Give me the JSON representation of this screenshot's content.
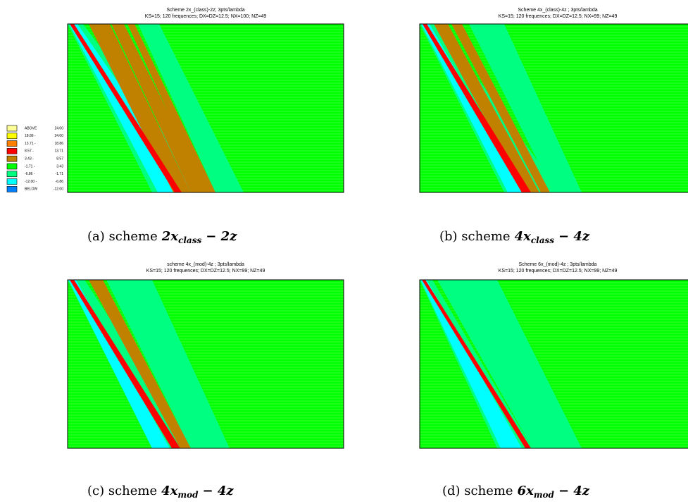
{
  "panels": [
    {
      "title": "Scheme 2x_(class)-2z; 3pts/lambda",
      "subtitle": "KS=15; 120 frequences; DX=DZ=12.5; NX=100; NZ=49",
      "caption": {
        "label": "(a) scheme",
        "coef": "2x",
        "sub": "class",
        "tail": "− 2z"
      }
    },
    {
      "title": "Scheme 4x_(class)-4z ; 3pts/lambda",
      "subtitle": "KS=15; 120 frequences; DX=DZ=12.5; NX=99; NZ=49",
      "caption": {
        "label": "(b) scheme",
        "coef": "4x",
        "sub": "class",
        "tail": "− 4z"
      }
    },
    {
      "title": "scheme 4x_(mod)-4z ; 3pts/lambda",
      "subtitle": "KS=15; 120 frequences; DX=DZ=12.5; NX=99; NZ=49",
      "caption": {
        "label": "(c)  scheme",
        "coef": "4x",
        "sub": "mod",
        "tail": "− 4z"
      }
    },
    {
      "title": "Scheme 6x_(mod)-4z ; 3pts/lambda",
      "subtitle": "KS=15; 120 frequences; DX=DZ=12.5; NX=99; NZ=49",
      "caption": {
        "label": "(d) scheme",
        "coef": "6x",
        "sub": "mod",
        "tail": "− 4z"
      }
    }
  ],
  "legend": [
    {
      "color": "#ffff99",
      "low": "ABOVE",
      "high": "24.00"
    },
    {
      "color": "#ffff00",
      "low": "18.86 -",
      "high": "24.00"
    },
    {
      "color": "#ff8000",
      "low": "13.71 -",
      "high": "18.86"
    },
    {
      "color": "#ff0000",
      "low": "8.57 -",
      "high": "13.71"
    },
    {
      "color": "#c08000",
      "low": "3.43 -",
      "high": "8.57"
    },
    {
      "color": "#00ff00",
      "low": "-1.71 -",
      "high": "3.43"
    },
    {
      "color": "#00ff80",
      "low": "-6.86 -",
      "high": "-1.71"
    },
    {
      "color": "#00ffff",
      "low": "-12.00 -",
      "high": "-6.86"
    },
    {
      "color": "#0080ff",
      "low": "BELOW",
      "high": "-12.00"
    }
  ]
}
